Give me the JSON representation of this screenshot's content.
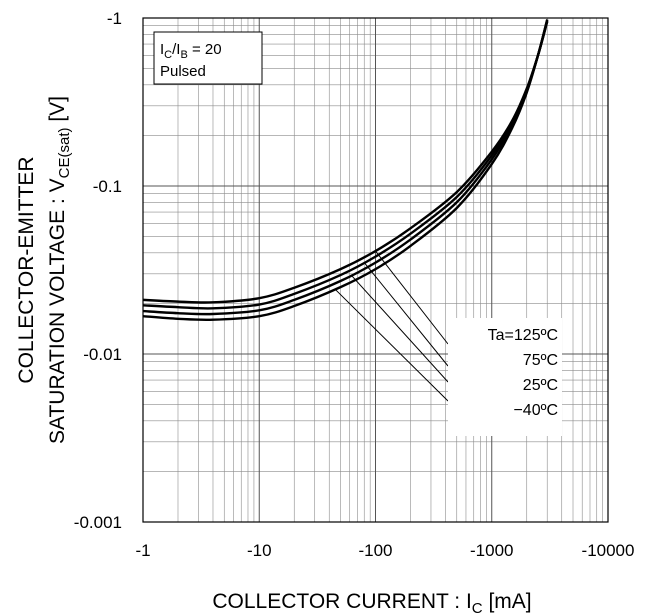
{
  "chart_data": {
    "type": "line",
    "xlabel": "COLLECTOR CURRENT : I",
    "xlabel_sub": "C",
    "xlabel_unit": " [mA]",
    "ylabel_line1": "COLLECTOR-EMITTER",
    "ylabel_line2_prefix": "SATURATION VOLTAGE : V",
    "ylabel_line2_sub": "CE(sat)",
    "ylabel_line2_suffix": " [V]",
    "x_scale": "log",
    "y_scale": "log",
    "xlim": [
      -1,
      -10000
    ],
    "ylim": [
      -0.001,
      -1
    ],
    "x_ticks": [
      -1,
      -10,
      -100,
      -1000,
      -10000
    ],
    "x_tick_labels": [
      "-1",
      "-10",
      "-100",
      "-1000",
      "-10000"
    ],
    "y_ticks": [
      -0.001,
      -0.01,
      -0.1,
      -1
    ],
    "y_tick_labels": [
      "-0.001",
      "-0.01",
      "-0.1",
      "-1"
    ],
    "grid": true,
    "condition": {
      "ratio_prefix": "I",
      "ratio_sub1": "C",
      "ratio_mid": "/I",
      "ratio_sub2": "B",
      "ratio_suffix": " = 20",
      "mode": "Pulsed"
    },
    "legend_placement": "bottom-right",
    "series": [
      {
        "name": "Ta=125ºC",
        "x": [
          -1,
          -2,
          -4,
          -10,
          -20,
          -50,
          -100,
          -200,
          -500,
          -1000,
          -1500,
          -2000,
          -2500,
          -3000
        ],
        "y": [
          -0.021,
          -0.0205,
          -0.0203,
          -0.0215,
          -0.0248,
          -0.032,
          -0.041,
          -0.056,
          -0.092,
          -0.16,
          -0.245,
          -0.38,
          -0.6,
          -0.95
        ]
      },
      {
        "name": "75ºC",
        "x": [
          -1,
          -2,
          -4,
          -10,
          -20,
          -50,
          -100,
          -200,
          -500,
          -1000,
          -1500,
          -2000,
          -2500,
          -3000
        ],
        "y": [
          -0.0195,
          -0.019,
          -0.0187,
          -0.0197,
          -0.0228,
          -0.0295,
          -0.038,
          -0.052,
          -0.086,
          -0.152,
          -0.24,
          -0.375,
          -0.6,
          -0.96
        ]
      },
      {
        "name": "25ºC",
        "x": [
          -1,
          -2,
          -4,
          -10,
          -20,
          -50,
          -100,
          -200,
          -500,
          -1000,
          -1500,
          -2000,
          -2500,
          -3000
        ],
        "y": [
          -0.018,
          -0.0175,
          -0.0173,
          -0.0182,
          -0.021,
          -0.0272,
          -0.035,
          -0.048,
          -0.08,
          -0.144,
          -0.232,
          -0.37,
          -0.6,
          -0.97
        ]
      },
      {
        "name": "−40ºC",
        "x": [
          -1,
          -2,
          -4,
          -10,
          -20,
          -50,
          -100,
          -200,
          -500,
          -1000,
          -1500,
          -2000,
          -2500,
          -3000
        ],
        "y": [
          -0.0168,
          -0.0162,
          -0.016,
          -0.0168,
          -0.0193,
          -0.025,
          -0.032,
          -0.044,
          -0.074,
          -0.135,
          -0.222,
          -0.36,
          -0.6,
          -0.98
        ]
      }
    ]
  }
}
